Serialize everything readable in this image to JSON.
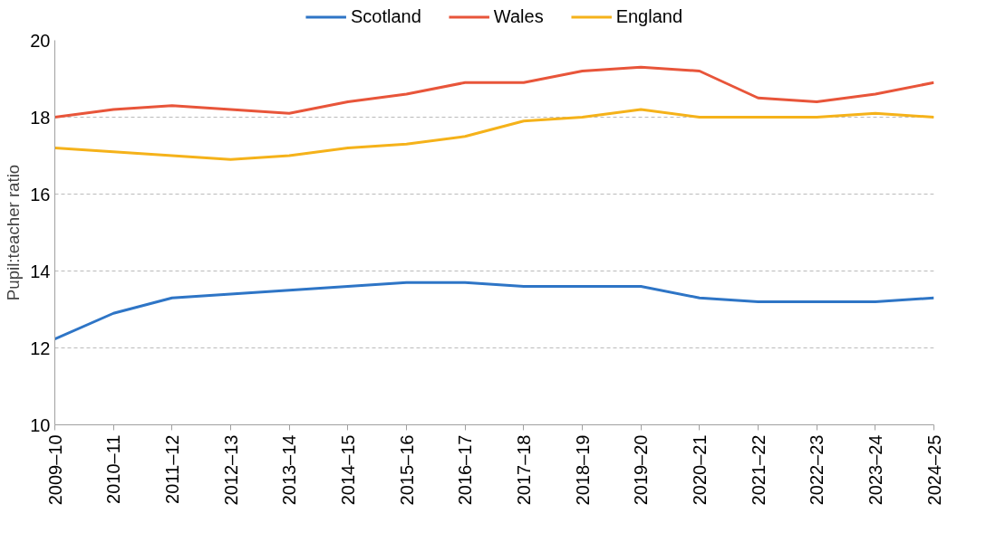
{
  "chart_data": {
    "type": "line",
    "ylabel": "Pupil:teacher ratio",
    "categories": [
      "2009–10",
      "2010–11",
      "2011–12",
      "2012–13",
      "2013–14",
      "2014–15",
      "2015–16",
      "2016–17",
      "2017–18",
      "2018–19",
      "2019–20",
      "2020–21",
      "2021–22",
      "2022–23",
      "2023–24",
      "2024–25"
    ],
    "series": [
      {
        "name": "Scotland",
        "color": "#2e75c6",
        "values": [
          12.23,
          12.9,
          13.3,
          13.4,
          13.5,
          13.6,
          13.7,
          13.7,
          13.6,
          13.6,
          13.6,
          13.3,
          13.2,
          13.2,
          13.2,
          13.3
        ]
      },
      {
        "name": "Wales",
        "color": "#e8553a",
        "values": [
          18.0,
          18.2,
          18.3,
          18.2,
          18.1,
          18.4,
          18.6,
          18.9,
          18.9,
          19.2,
          19.3,
          19.2,
          18.5,
          18.4,
          18.6,
          18.9
        ]
      },
      {
        "name": "England",
        "color": "#f5b21a",
        "values": [
          17.2,
          17.1,
          17.0,
          16.9,
          17.0,
          17.2,
          17.3,
          17.5,
          17.9,
          18.0,
          18.2,
          18.0,
          18.0,
          18.0,
          18.1,
          18.0
        ]
      }
    ],
    "ylim": [
      10,
      20
    ],
    "yticks": [
      10,
      12,
      14,
      16,
      18,
      20
    ],
    "grid": "y",
    "legend": "top",
    "marker": "none",
    "line_style": "solid"
  }
}
